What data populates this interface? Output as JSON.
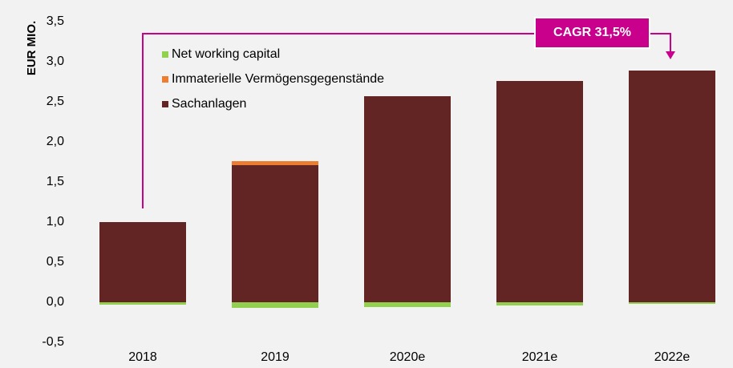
{
  "chart_data": {
    "type": "stacked_bar",
    "y_label": "EUR MIO.",
    "annotation": "CAGR 31,5%",
    "annotation_color": "#c8008c",
    "categories": [
      "2018",
      "2019",
      "2020e",
      "2021e",
      "2022e"
    ],
    "series": [
      {
        "name": "Net working capital",
        "color": "#92d050",
        "values": [
          -0.03,
          -0.07,
          -0.06,
          -0.04,
          -0.02
        ]
      },
      {
        "name": "Immaterielle Vermögensgegenstände",
        "color": "#ed7d31",
        "values": [
          0,
          0.05,
          0,
          0,
          0
        ]
      },
      {
        "name": "Sachanlagen",
        "color": "#632523",
        "values": [
          1.0,
          1.71,
          2.57,
          2.76,
          2.89
        ]
      }
    ],
    "ylim": [
      -0.5,
      3.5
    ],
    "yticks": [
      {
        "value": -0.5,
        "label": "-0,5"
      },
      {
        "value": 0,
        "label": "0,0"
      },
      {
        "value": 0.5,
        "label": "0,5"
      },
      {
        "value": 1,
        "label": "1,0"
      },
      {
        "value": 1.5,
        "label": "1,5"
      },
      {
        "value": 2,
        "label": "2,0"
      },
      {
        "value": 2.5,
        "label": "2,5"
      },
      {
        "value": 3,
        "label": "3,0"
      },
      {
        "value": 3.5,
        "label": "3,5"
      }
    ],
    "grid": false,
    "legend": "upper left"
  }
}
